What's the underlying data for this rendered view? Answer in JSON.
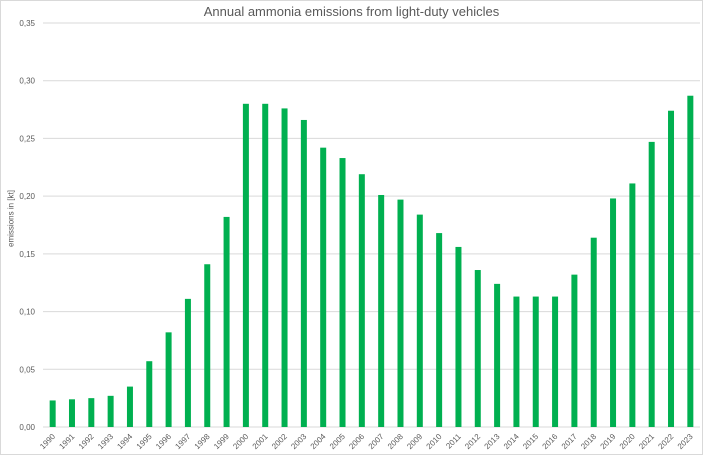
{
  "chart_data": {
    "type": "bar",
    "title": "Annual ammonia emissions from light-duty vehicles",
    "xlabel": "",
    "ylabel": "emissions in [kt]",
    "ylim": [
      0,
      0.35
    ],
    "yticks": [
      "0,00",
      "0,05",
      "0,10",
      "0,15",
      "0,20",
      "0,25",
      "0,30",
      "0,35"
    ],
    "grid": true,
    "bar_color": "#00b050",
    "categories": [
      "1990",
      "1991",
      "1992",
      "1993",
      "1994",
      "1995",
      "1996",
      "1997",
      "1998",
      "1999",
      "2000",
      "2001",
      "2002",
      "2003",
      "2004",
      "2005",
      "2006",
      "2007",
      "2008",
      "2009",
      "2010",
      "2011",
      "2012",
      "2013",
      "2014",
      "2015",
      "2016",
      "2017",
      "2018",
      "2019",
      "2020",
      "2021",
      "2022",
      "2023"
    ],
    "values": [
      0.023,
      0.024,
      0.025,
      0.027,
      0.035,
      0.057,
      0.082,
      0.111,
      0.141,
      0.182,
      0.28,
      0.28,
      0.276,
      0.266,
      0.242,
      0.233,
      0.219,
      0.201,
      0.197,
      0.184,
      0.168,
      0.156,
      0.136,
      0.124,
      0.113,
      0.113,
      0.113,
      0.132,
      0.164,
      0.198,
      0.211,
      0.247,
      0.274,
      0.287
    ]
  }
}
